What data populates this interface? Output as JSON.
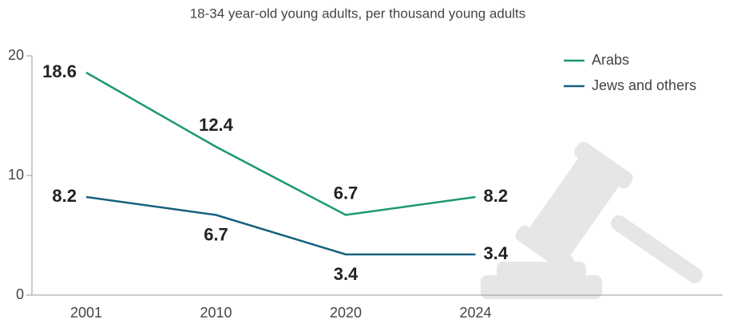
{
  "chart_data": {
    "type": "line",
    "subtitle": "18-34 year-old young adults, per thousand young adults",
    "categories": [
      "2001",
      "2010",
      "2020",
      "2024"
    ],
    "series": [
      {
        "name": "Arabs",
        "color": "#1a9a6c",
        "values": [
          18.6,
          12.4,
          6.7,
          8.2
        ]
      },
      {
        "name": "Jews and others",
        "color": "#17607f",
        "values": [
          8.2,
          6.7,
          3.4,
          3.4
        ]
      }
    ],
    "ylim": [
      0,
      20
    ],
    "yticks": [
      0,
      10,
      20
    ],
    "legend": "top-right"
  }
}
